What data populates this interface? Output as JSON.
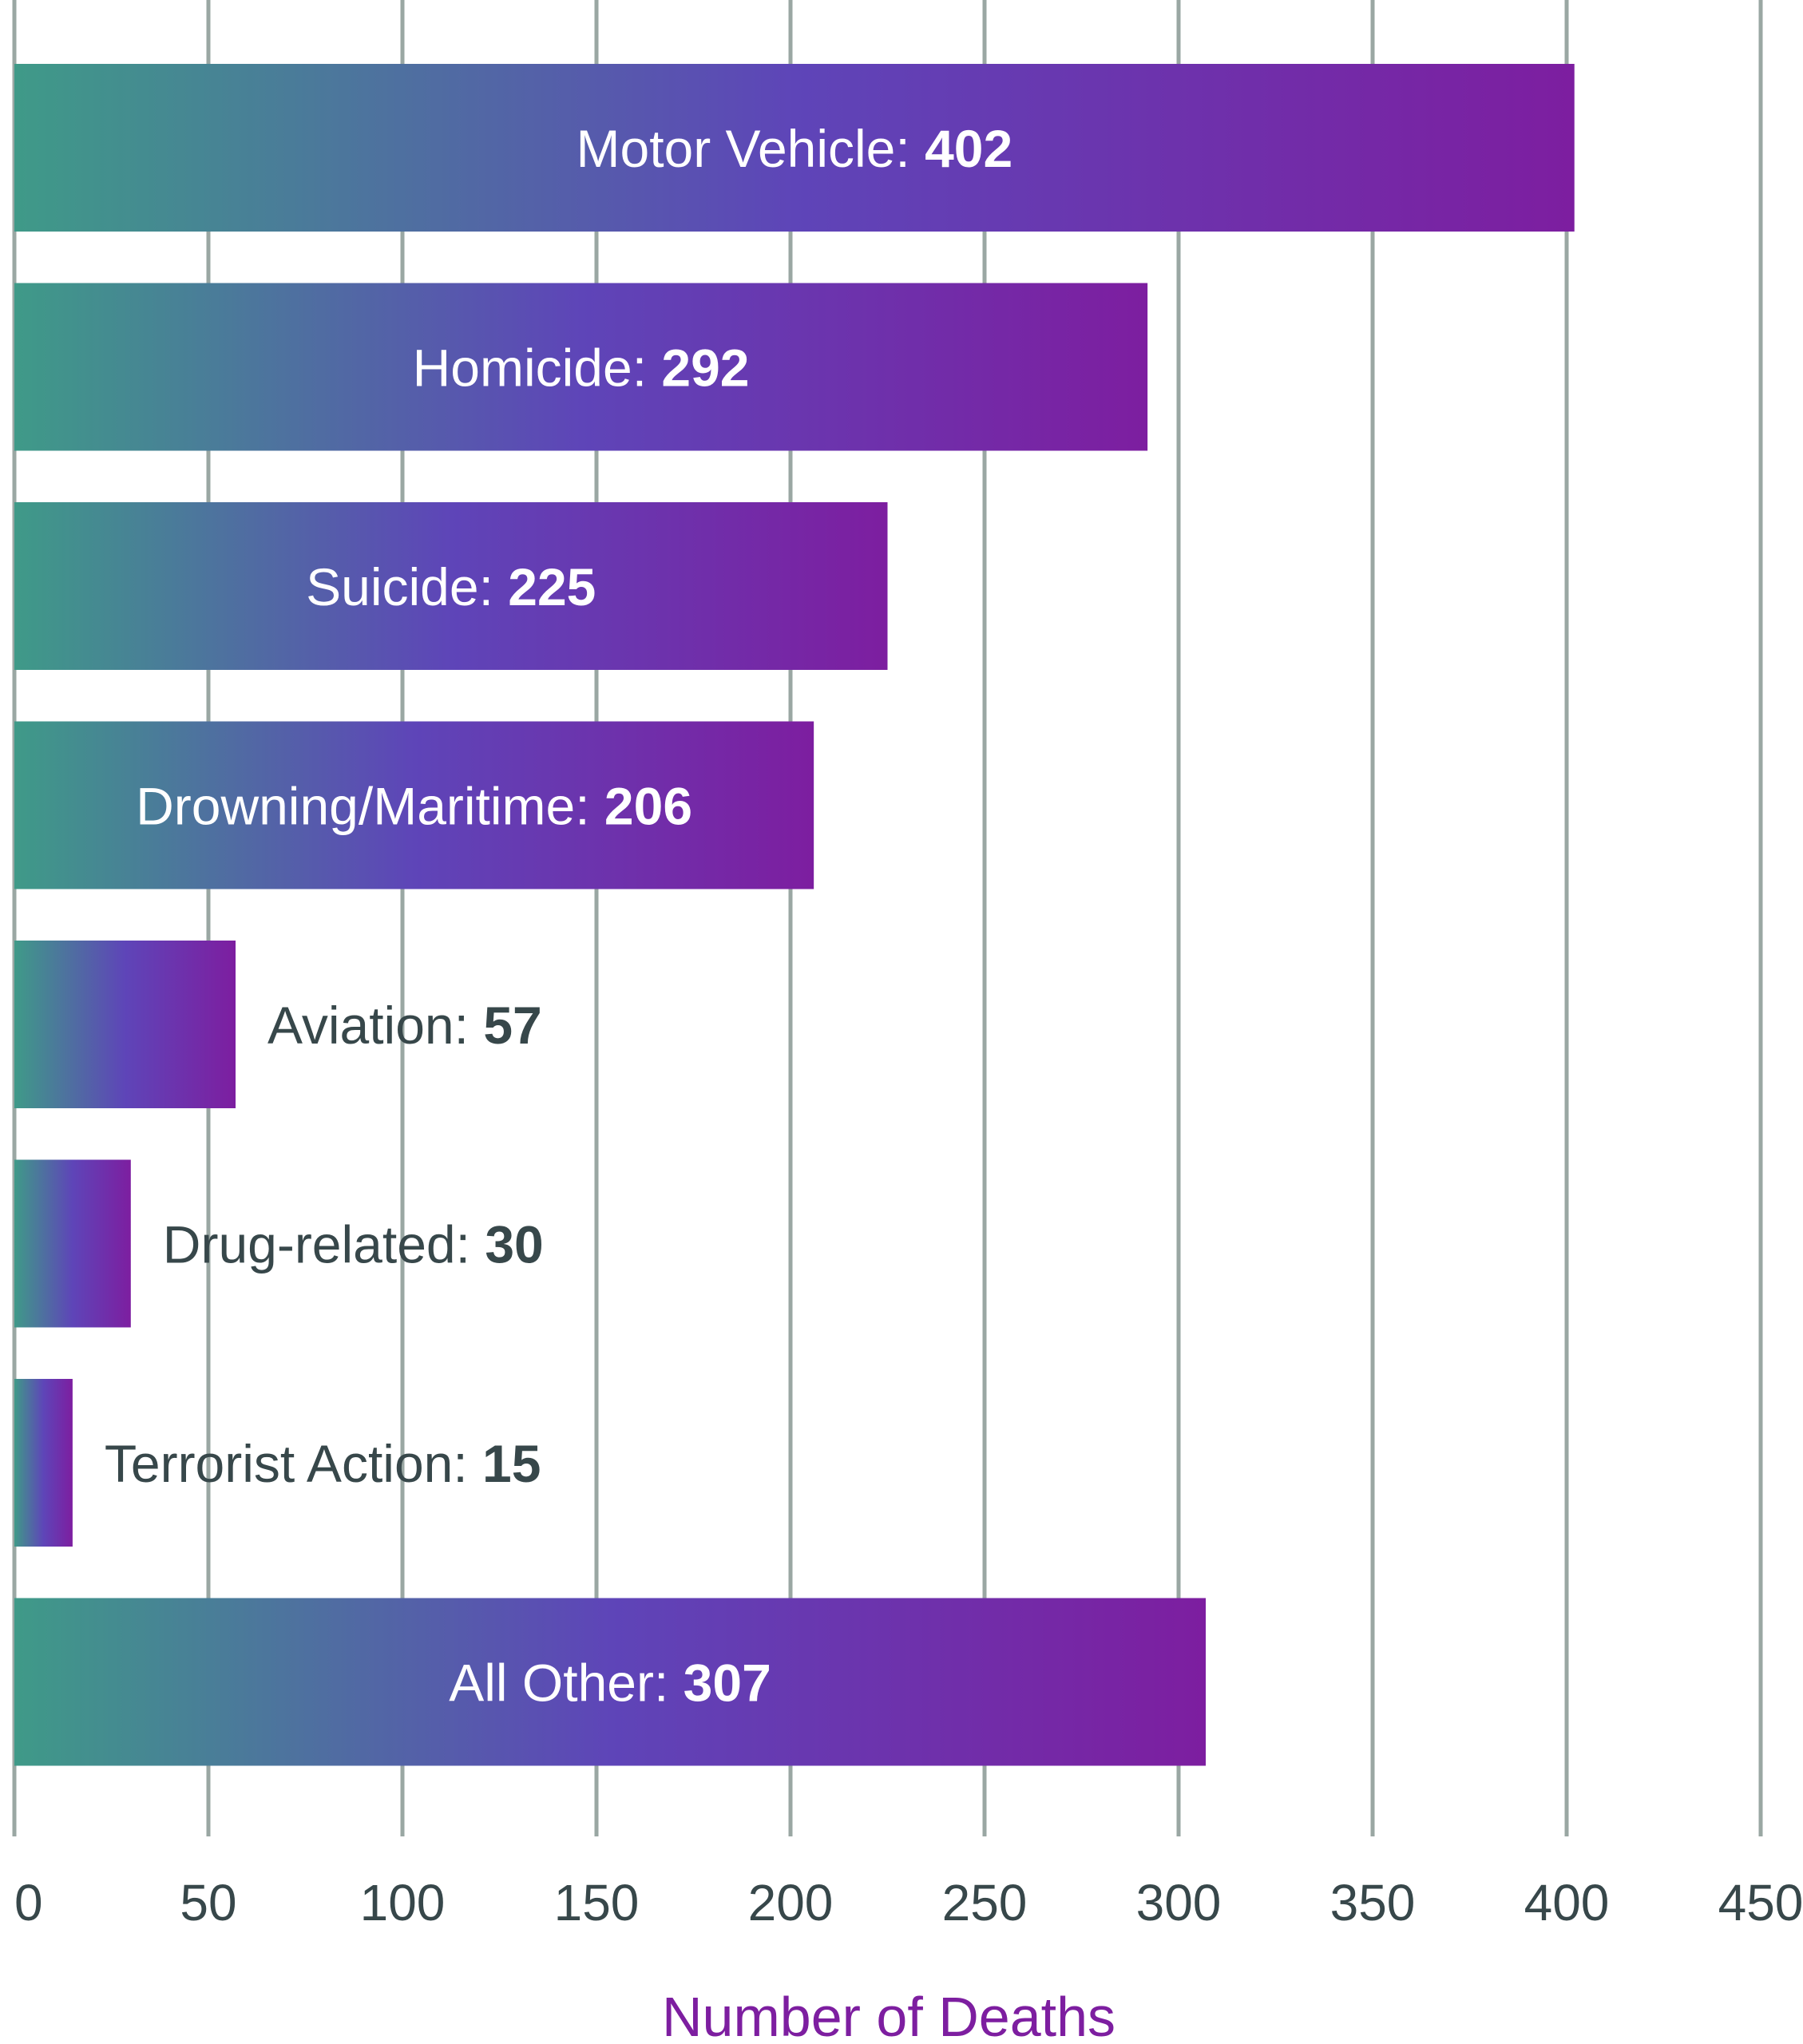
{
  "chart_data": {
    "type": "bar",
    "orientation": "horizontal",
    "categories": [
      "Motor Vehicle",
      "Homicide",
      "Suicide",
      "Drowning/Maritime",
      "Aviation",
      "Drug-related",
      "Terrorist Action",
      "All Other"
    ],
    "values": [
      402,
      292,
      225,
      206,
      57,
      30,
      15,
      307
    ],
    "data_labels": [
      "402",
      "292",
      "225",
      "206",
      "57",
      "30",
      "15",
      "307"
    ],
    "xlabel": "Number of Deaths",
    "xlim": [
      0,
      450
    ],
    "xticks": [
      0,
      50,
      100,
      150,
      200,
      250,
      300,
      350,
      400,
      450
    ],
    "xtick_labels": [
      "0",
      "50",
      "100",
      "150",
      "200",
      "250",
      "300",
      "350",
      "400",
      "450"
    ],
    "grid": true,
    "legend": "none"
  },
  "colors": {
    "bar_gradient_start": "#3f9a88",
    "bar_gradient_mid": "#5e45b8",
    "bar_gradient_end": "#7d1ea0",
    "gridline": "#9aa7a3",
    "tick_text": "#37474a",
    "label_inside": "#ffffff",
    "label_outside": "#37474a",
    "axis_title": "#7d1ea0"
  }
}
